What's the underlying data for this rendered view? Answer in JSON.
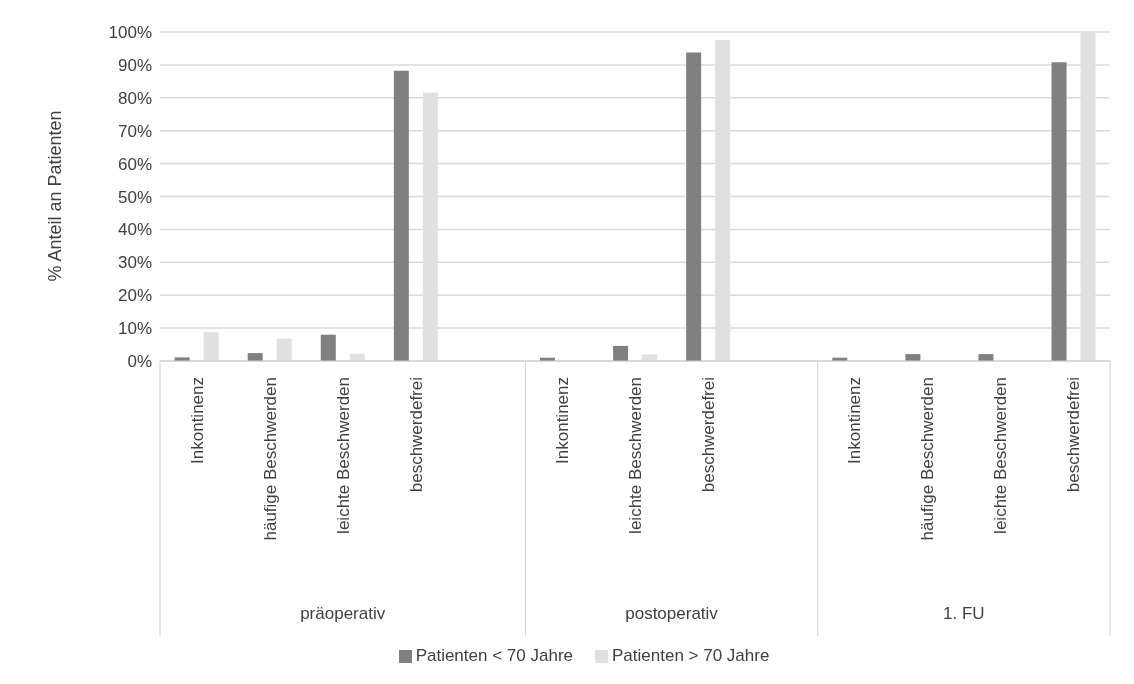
{
  "chart_data": {
    "type": "bar",
    "ylabel": "% Anteil an Patienten",
    "categories": [
      "Inkontinenz",
      "häufige Beschwerden",
      "leichte Beschwerden",
      "beschwerdefrei",
      null,
      "Inkontinenz",
      "leichte Beschwerden",
      "beschwerdefrei",
      null,
      "Inkontinenz",
      "häufige Beschwerden",
      "leichte Beschwerden",
      "beschwerdefrei"
    ],
    "series": [
      {
        "name": "Patienten < 70 Jahre",
        "color": "#808080",
        "values": [
          1.1,
          2.4,
          8.0,
          88.2,
          null,
          1.0,
          4.6,
          93.8,
          null,
          1.0,
          2.1,
          2.1,
          90.8
        ]
      },
      {
        "name": "Patienten > 70 Jahre",
        "color": "#e0e0e0",
        "values": [
          8.8,
          6.8,
          2.2,
          81.6,
          null,
          0,
          2.0,
          97.6,
          null,
          0,
          0,
          0,
          100
        ]
      }
    ],
    "annotations": [
      "präoperativ",
      "postoperativ",
      "1. FU"
    ],
    "ylim": [
      0,
      100
    ],
    "yticks": [
      {
        "value": 0,
        "label": "0%"
      },
      {
        "value": 10,
        "label": "10%"
      },
      {
        "value": 20,
        "label": "20%"
      },
      {
        "value": 30,
        "label": "30%"
      },
      {
        "value": 40,
        "label": "40%"
      },
      {
        "value": 50,
        "label": "50%"
      },
      {
        "value": 60,
        "label": "60%"
      },
      {
        "value": 70,
        "label": "70%"
      },
      {
        "value": 80,
        "label": "80%"
      },
      {
        "value": 90,
        "label": "90%"
      },
      {
        "value": 100,
        "label": "100%"
      }
    ],
    "grid": "y",
    "legend": "bottom"
  }
}
